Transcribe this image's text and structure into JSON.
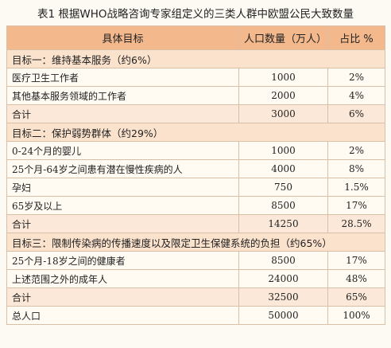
{
  "title": "表1 根据WHO战略咨询专家组定义的三类人群中欧盟公民大致数量",
  "table": {
    "header": [
      "具体目标",
      "人口数量（万人）",
      "占比 %"
    ],
    "sections": [
      {
        "heading": "目标一：维持基本服务（约6%）",
        "rows": [
          [
            "医疗卫生工作者",
            "1000",
            "2%"
          ],
          [
            "其他基本服务领域的工作者",
            "2000",
            "4%"
          ],
          [
            "合计",
            "3000",
            "6%"
          ]
        ]
      },
      {
        "heading": "目标二：保护弱势群体（约29%）",
        "rows": [
          [
            "0-24个月的婴儿",
            "1000",
            "2%"
          ],
          [
            "25个月-64岁之间患有潜在慢性疾病的人",
            "4000",
            "8%"
          ],
          [
            "孕妇",
            "750",
            "1.5%"
          ],
          [
            "65岁及以上",
            "8500",
            "17%"
          ],
          [
            "合计",
            "14250",
            "28.5%"
          ]
        ]
      },
      {
        "heading": "目标三：限制传染病的传播速度以及限定卫生保健系统的负担（约65%）",
        "rows": [
          [
            "25个月-18岁之间的健康者",
            "8500",
            "17%"
          ],
          [
            "上述范围之外的成年人",
            "24000",
            "48%"
          ],
          [
            "合计",
            "32500",
            "65%"
          ]
        ]
      }
    ],
    "total": [
      "总人口",
      "50000",
      "100%"
    ]
  }
}
